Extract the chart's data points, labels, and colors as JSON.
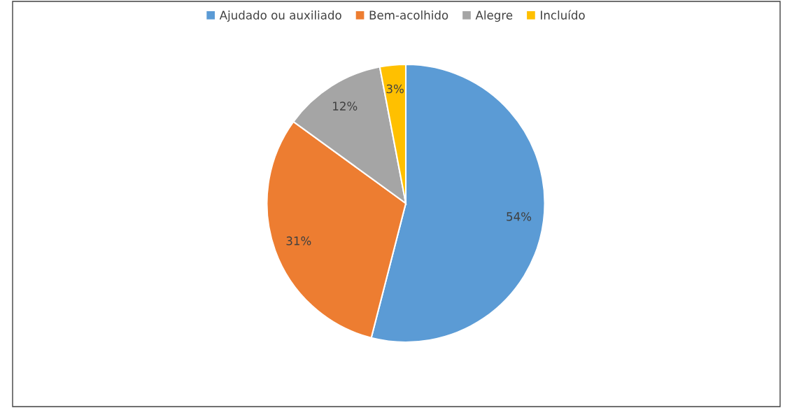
{
  "chart_data": {
    "type": "pie",
    "categories": [
      "Ajudado ou auxiliado",
      "Bem-acolhido",
      "Alegre",
      "Incluído"
    ],
    "values": [
      54,
      31,
      12,
      3
    ],
    "colors": [
      "#5b9bd5",
      "#ed7d31",
      "#a5a5a5",
      "#ffc000"
    ],
    "value_labels": [
      "54%",
      "31%",
      "12%",
      "3%"
    ],
    "legend": "top"
  }
}
